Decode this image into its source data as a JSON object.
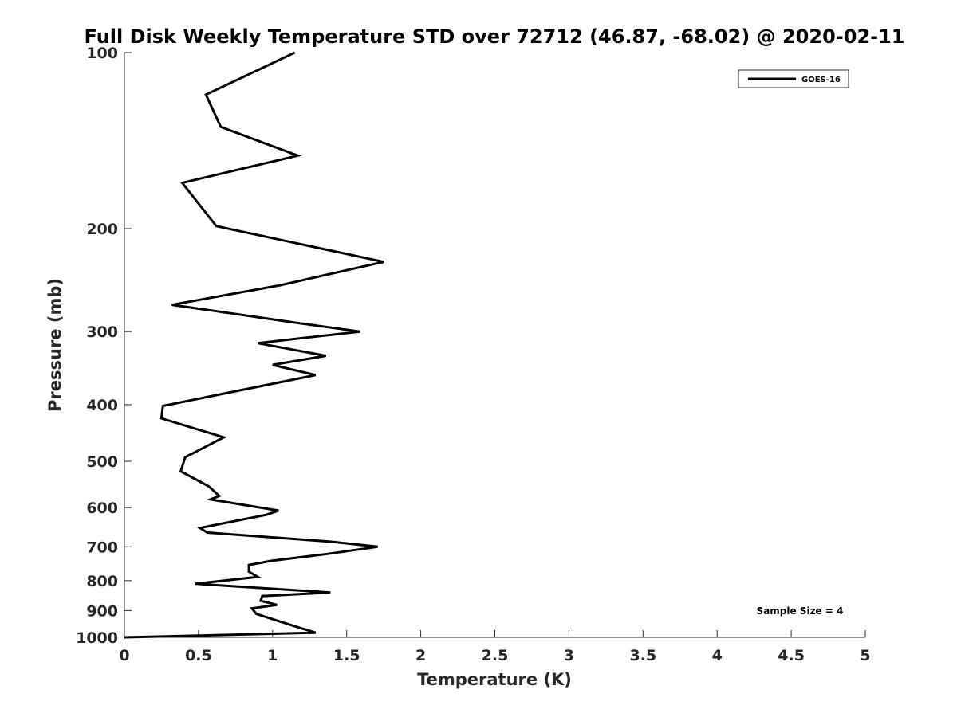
{
  "chart_data": {
    "type": "line",
    "title": "Full Disk Weekly Temperature STD over 72712 (46.87, -68.02) @ 2020-02-11",
    "xlabel": "Temperature (K)",
    "ylabel": "Pressure (mb)",
    "xlim": [
      0,
      5
    ],
    "ylim": [
      1000,
      100
    ],
    "y_scale": "log",
    "y_reversed": true,
    "x_ticks": [
      0,
      0.5,
      1,
      1.5,
      2,
      2.5,
      3,
      3.5,
      4,
      4.5,
      5
    ],
    "x_tick_labels": [
      "0",
      "0.5",
      "1",
      "1.5",
      "2",
      "2.5",
      "3",
      "3.5",
      "4",
      "4.5",
      "5"
    ],
    "y_ticks": [
      100,
      200,
      300,
      400,
      500,
      600,
      700,
      800,
      900,
      1000
    ],
    "y_tick_labels": [
      "100",
      "200",
      "300",
      "400",
      "500",
      "600",
      "700",
      "800",
      "900",
      "1000"
    ],
    "grid": false,
    "legend_position": "top-right",
    "annotation": "Sample Size = 4",
    "series": [
      {
        "name": "GOES-16",
        "color": "#000000",
        "points": [
          [
            1.15,
            100
          ],
          [
            0.55,
            118
          ],
          [
            0.65,
            134
          ],
          [
            1.17,
            150
          ],
          [
            0.39,
            167
          ],
          [
            0.62,
            198
          ],
          [
            1.75,
            228
          ],
          [
            1.05,
            250
          ],
          [
            0.32,
            270
          ],
          [
            1.21,
            291
          ],
          [
            1.59,
            300
          ],
          [
            0.9,
            314
          ],
          [
            1.36,
            330
          ],
          [
            1.0,
            342
          ],
          [
            1.29,
            356
          ],
          [
            0.26,
            402
          ],
          [
            0.25,
            422
          ],
          [
            0.67,
            455
          ],
          [
            0.57,
            469
          ],
          [
            0.41,
            492
          ],
          [
            0.38,
            520
          ],
          [
            0.57,
            552
          ],
          [
            0.64,
            573
          ],
          [
            0.58,
            581
          ],
          [
            1.04,
            607
          ],
          [
            0.96,
            617
          ],
          [
            0.51,
            650
          ],
          [
            0.56,
            662
          ],
          [
            1.39,
            686
          ],
          [
            1.71,
            700
          ],
          [
            1.37,
            720
          ],
          [
            0.99,
            740
          ],
          [
            0.84,
            752
          ],
          [
            0.84,
            772
          ],
          [
            0.9,
            788
          ],
          [
            0.48,
            810
          ],
          [
            1.39,
            838
          ],
          [
            0.93,
            850
          ],
          [
            0.92,
            866
          ],
          [
            1.03,
            880
          ],
          [
            0.86,
            892
          ],
          [
            0.89,
            912
          ],
          [
            1.04,
            938
          ],
          [
            1.29,
            982
          ],
          [
            0.0,
            1000
          ]
        ]
      }
    ]
  }
}
